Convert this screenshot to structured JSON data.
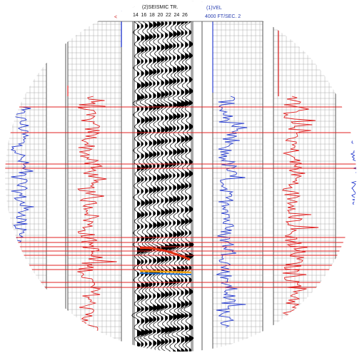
{
  "header": {
    "left_mark": "<",
    "seismic_title": "(2)SEISMIC TR.",
    "trace_numbers": [
      "14",
      "16",
      "18",
      "20",
      "22",
      "24",
      "26"
    ],
    "right_panel_title": "(1)VEL",
    "velocity_range": "4000   FT/SEC.  2",
    "far_right_mark": "<"
  },
  "colors": {
    "grid": "#9a9a9a",
    "track_border": "#444444",
    "red_log": "#e02020",
    "blue_log": "#2b3fcf",
    "wiggle_fill": "#000000",
    "horizon_red": "#e03010",
    "horizon_orange": "#f0a010",
    "horizon_blue": "#1f6fd0",
    "correlation_lines": "#e02020"
  },
  "icons": {
    "frame": "circle-mask"
  }
}
